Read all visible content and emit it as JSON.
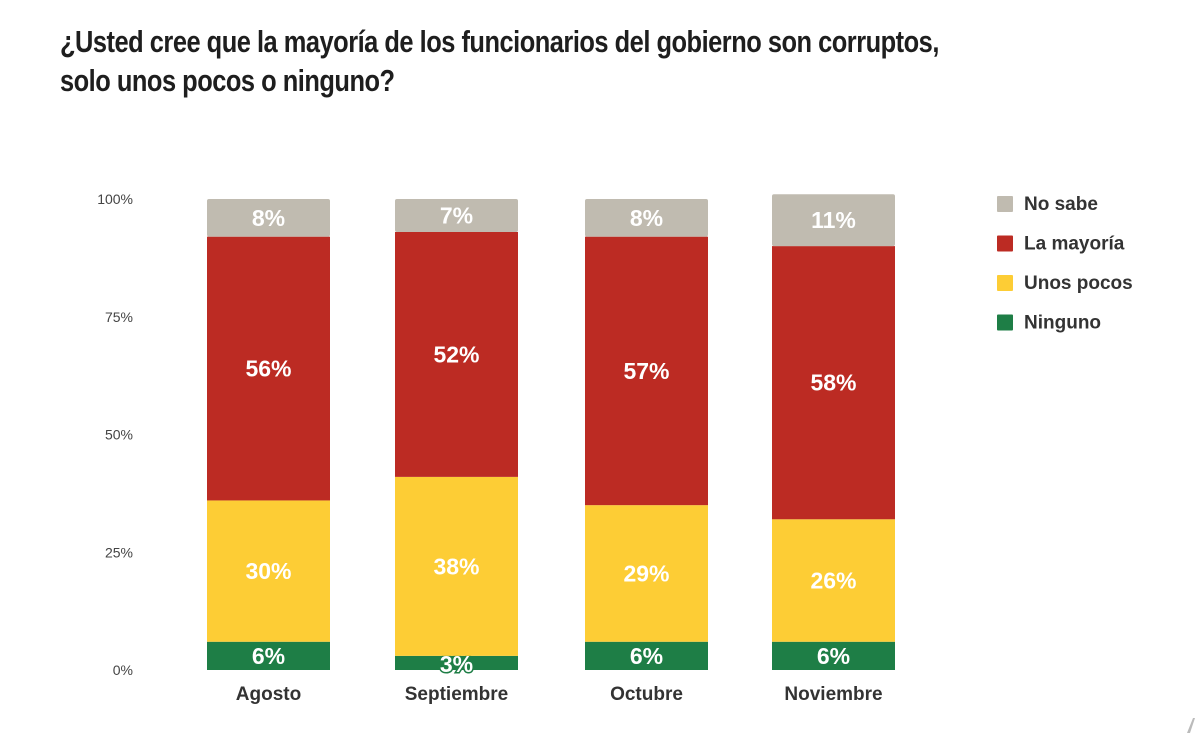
{
  "chart_data": {
    "type": "bar",
    "stacked": true,
    "title": "¿Usted cree que la mayoría de los funcionarios del gobierno son corruptos, solo unos pocos o ninguno?",
    "title_lines": [
      "¿Usted cree que la mayoría de los funcionarios del gobierno son corruptos,",
      "solo unos pocos o ninguno?"
    ],
    "categories": [
      "Agosto",
      "Septiembre",
      "Octubre",
      "Noviembre"
    ],
    "series": [
      {
        "name": "Ninguno",
        "color": "#1e7e46",
        "values": [
          6,
          3,
          6,
          6
        ],
        "labels": [
          "6%",
          "3%",
          "6%",
          "6%"
        ]
      },
      {
        "name": "Unos pocos",
        "color": "#fdcd35",
        "values": [
          30,
          38,
          29,
          26
        ],
        "labels": [
          "30%",
          "38%",
          "29%",
          "26%"
        ]
      },
      {
        "name": "La mayoría",
        "color": "#bc2b23",
        "values": [
          56,
          52,
          57,
          58
        ],
        "labels": [
          "56%",
          "52%",
          "57%",
          "58%"
        ]
      },
      {
        "name": "No sabe",
        "color": "#c0bbb0",
        "values": [
          8,
          7,
          8,
          11
        ],
        "labels": [
          "8%",
          "7%",
          "8%",
          "11%"
        ]
      }
    ],
    "legend_order": [
      "No sabe",
      "La mayoría",
      "Unos pocos",
      "Ninguno"
    ],
    "legend_position": "right",
    "yticks": [
      "0%",
      "25%",
      "50%",
      "75%",
      "100%"
    ],
    "ytick_values": [
      0,
      25,
      50,
      75,
      100
    ],
    "ylim": [
      0,
      100
    ],
    "xlabel": "",
    "ylabel": "",
    "grid": false
  }
}
